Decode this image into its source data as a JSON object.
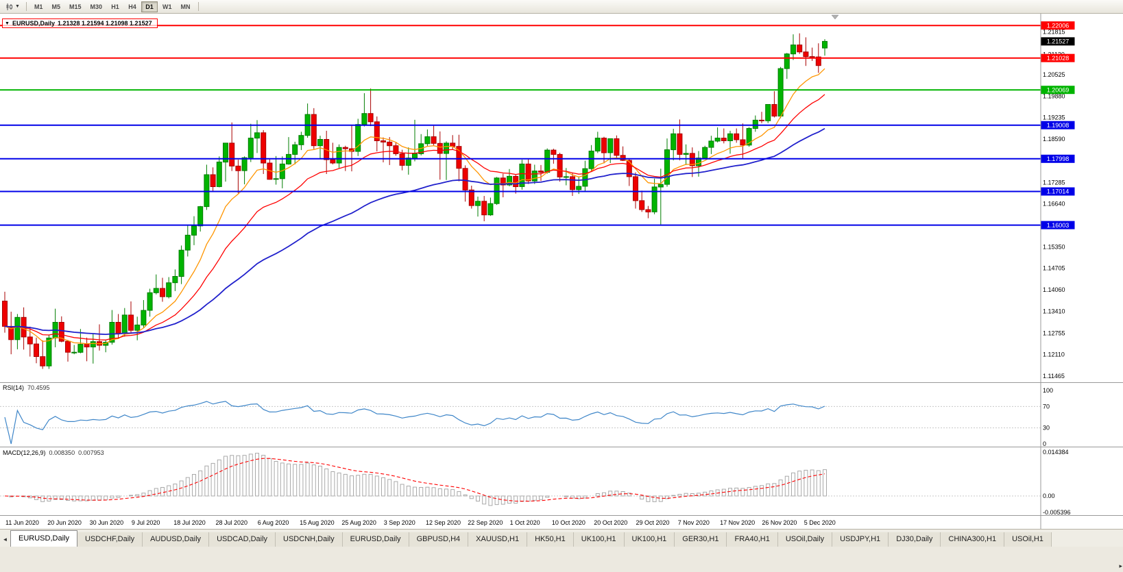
{
  "toolbar": {
    "chart_type_icon": "candlestick-chart-icon",
    "timeframes": [
      "M1",
      "M5",
      "M15",
      "M30",
      "H1",
      "H4",
      "D1",
      "W1",
      "MN"
    ],
    "active_timeframe": "D1"
  },
  "chart": {
    "symbol_title": "EURUSD,Daily",
    "ohlc": "1.21328 1.21594 1.21098 1.21527",
    "hlines": [
      {
        "price": 1.22006,
        "label": "1.22006",
        "color": "#ff0000"
      },
      {
        "price": 1.21028,
        "label": "1.21028",
        "color": "#ff0000"
      },
      {
        "price": 1.20069,
        "label": "1.20069",
        "color": "#00b400"
      },
      {
        "price": 1.19008,
        "label": "1.19008",
        "color": "#0000e8"
      },
      {
        "price": 1.17998,
        "label": "1.17998",
        "color": "#0000e8"
      },
      {
        "price": 1.17014,
        "label": "1.17014",
        "color": "#0000e8"
      },
      {
        "price": 1.16003,
        "label": "1.16003",
        "color": "#0000e8"
      }
    ],
    "current_price": {
      "price": 1.21527,
      "label": "1.21527",
      "bg": "#000000"
    },
    "price_axis_labels": [
      "1.21815",
      "1.21130",
      "1.20525",
      "1.19880",
      "1.19235",
      "1.18590",
      "1.17285",
      "1.16640",
      "1.15350",
      "1.14705",
      "1.14060",
      "1.13410",
      "1.12755",
      "1.12110",
      "1.11465"
    ]
  },
  "chart_data": {
    "type": "candlestick",
    "symbol": "EURUSD",
    "timeframe": "Daily",
    "price_range": [
      1.1128,
      1.2236
    ],
    "x_labels": [
      "11 Jun 2020",
      "20 Jun 2020",
      "30 Jun 2020",
      "9 Jul 2020",
      "18 Jul 2020",
      "28 Jul 2020",
      "6 Aug 2020",
      "15 Aug 2020",
      "25 Aug 2020",
      "3 Sep 2020",
      "12 Sep 2020",
      "22 Sep 2020",
      "1 Oct 2020",
      "10 Oct 2020",
      "20 Oct 2020",
      "29 Oct 2020",
      "7 Nov 2020",
      "17 Nov 2020",
      "26 Nov 2020",
      "5 Dec 2020"
    ],
    "moving_averages": [
      {
        "name": "ma-fast",
        "period": 10,
        "color": "#ff9500",
        "width": 1.3
      },
      {
        "name": "ma-medium",
        "period": 21,
        "color": "#ff0000",
        "width": 1.3
      },
      {
        "name": "ma-slow",
        "period": 50,
        "color": "#2020cc",
        "width": 1.8
      }
    ],
    "candles_ohlc": [
      [
        1.1372,
        1.14,
        1.1277,
        1.1296
      ],
      [
        1.1296,
        1.134,
        1.1212,
        1.1256
      ],
      [
        1.1256,
        1.1333,
        1.1227,
        1.1323
      ],
      [
        1.1323,
        1.1353,
        1.1226,
        1.1264
      ],
      [
        1.1264,
        1.1295,
        1.1205,
        1.1243
      ],
      [
        1.1243,
        1.1262,
        1.1185,
        1.1205
      ],
      [
        1.1205,
        1.1254,
        1.1168,
        1.1177
      ],
      [
        1.1177,
        1.1271,
        1.1168,
        1.1261
      ],
      [
        1.1261,
        1.1349,
        1.1233,
        1.1308
      ],
      [
        1.1308,
        1.1326,
        1.1248,
        1.1251
      ],
      [
        1.1251,
        1.1255,
        1.119,
        1.1218
      ],
      [
        1.1218,
        1.124,
        1.1212,
        1.1218
      ],
      [
        1.1218,
        1.1288,
        1.1215,
        1.1242
      ],
      [
        1.1242,
        1.1262,
        1.1191,
        1.1234
      ],
      [
        1.1234,
        1.1275,
        1.1184,
        1.125
      ],
      [
        1.125,
        1.1302,
        1.1223,
        1.1239
      ],
      [
        1.1239,
        1.1254,
        1.1218,
        1.1248
      ],
      [
        1.1248,
        1.1345,
        1.1241,
        1.1308
      ],
      [
        1.1308,
        1.1333,
        1.1259,
        1.1274
      ],
      [
        1.1274,
        1.1351,
        1.1265,
        1.133
      ],
      [
        1.133,
        1.1371,
        1.1277,
        1.1284
      ],
      [
        1.1284,
        1.1325,
        1.1254,
        1.13
      ],
      [
        1.13,
        1.1375,
        1.1292,
        1.1344
      ],
      [
        1.1344,
        1.1409,
        1.1325,
        1.1397
      ],
      [
        1.1397,
        1.1452,
        1.1392,
        1.141
      ],
      [
        1.141,
        1.1442,
        1.137,
        1.1385
      ],
      [
        1.1385,
        1.1444,
        1.138,
        1.1427
      ],
      [
        1.1427,
        1.1467,
        1.1402,
        1.1446
      ],
      [
        1.1446,
        1.1539,
        1.1423,
        1.1525
      ],
      [
        1.1525,
        1.1601,
        1.1506,
        1.157
      ],
      [
        1.157,
        1.1627,
        1.154,
        1.1598
      ],
      [
        1.1598,
        1.1658,
        1.1581,
        1.1656
      ],
      [
        1.1656,
        1.1782,
        1.1646,
        1.1752
      ],
      [
        1.1752,
        1.1774,
        1.17,
        1.1716
      ],
      [
        1.1716,
        1.1807,
        1.1714,
        1.179
      ],
      [
        1.179,
        1.1847,
        1.1731,
        1.1847
      ],
      [
        1.1847,
        1.1909,
        1.1763,
        1.1778
      ],
      [
        1.1778,
        1.1797,
        1.1696,
        1.1764
      ],
      [
        1.1764,
        1.1807,
        1.1723,
        1.1803
      ],
      [
        1.1803,
        1.1905,
        1.179,
        1.1862
      ],
      [
        1.1862,
        1.1916,
        1.1817,
        1.1878
      ],
      [
        1.1878,
        1.1886,
        1.1754,
        1.1787
      ],
      [
        1.1787,
        1.1798,
        1.1737,
        1.1738
      ],
      [
        1.1738,
        1.1808,
        1.1722,
        1.174
      ],
      [
        1.174,
        1.1807,
        1.1711,
        1.1784
      ],
      [
        1.1784,
        1.1865,
        1.1782,
        1.1813
      ],
      [
        1.1813,
        1.1851,
        1.1783,
        1.1842
      ],
      [
        1.1842,
        1.1881,
        1.1826,
        1.187
      ],
      [
        1.187,
        1.1966,
        1.1863,
        1.1933
      ],
      [
        1.1933,
        1.1952,
        1.1829,
        1.1839
      ],
      [
        1.1839,
        1.1869,
        1.1801,
        1.1858
      ],
      [
        1.1858,
        1.1884,
        1.1754,
        1.1797
      ],
      [
        1.1797,
        1.1848,
        1.1783,
        1.1787
      ],
      [
        1.1787,
        1.1843,
        1.1772,
        1.1834
      ],
      [
        1.1834,
        1.1839,
        1.1763,
        1.183
      ],
      [
        1.183,
        1.1901,
        1.1762,
        1.1822
      ],
      [
        1.1822,
        1.192,
        1.1808,
        1.1903
      ],
      [
        1.1903,
        1.1997,
        1.1897,
        1.1936
      ],
      [
        1.1936,
        1.2011,
        1.1898,
        1.1911
      ],
      [
        1.1911,
        1.1927,
        1.1822,
        1.1854
      ],
      [
        1.1854,
        1.1864,
        1.1789,
        1.185
      ],
      [
        1.185,
        1.1865,
        1.1781,
        1.1839
      ],
      [
        1.1839,
        1.1849,
        1.1809,
        1.1815
      ],
      [
        1.1815,
        1.1827,
        1.1765,
        1.178
      ],
      [
        1.178,
        1.1834,
        1.1752,
        1.1802
      ],
      [
        1.1802,
        1.1917,
        1.1792,
        1.1815
      ],
      [
        1.1815,
        1.1874,
        1.181,
        1.1845
      ],
      [
        1.1845,
        1.1888,
        1.1838,
        1.1866
      ],
      [
        1.1866,
        1.1899,
        1.184,
        1.1846
      ],
      [
        1.1846,
        1.1882,
        1.1737,
        1.1816
      ],
      [
        1.1816,
        1.1852,
        1.1736,
        1.1847
      ],
      [
        1.1847,
        1.1871,
        1.1827,
        1.1837
      ],
      [
        1.1837,
        1.1872,
        1.1732,
        1.1771
      ],
      [
        1.1771,
        1.178,
        1.1671,
        1.1706
      ],
      [
        1.1706,
        1.1719,
        1.165,
        1.1659
      ],
      [
        1.1659,
        1.1686,
        1.1626,
        1.1672
      ],
      [
        1.1672,
        1.1688,
        1.1612,
        1.1631
      ],
      [
        1.1631,
        1.1683,
        1.1628,
        1.1665
      ],
      [
        1.1665,
        1.1745,
        1.1661,
        1.1742
      ],
      [
        1.1742,
        1.1755,
        1.1684,
        1.1721
      ],
      [
        1.1721,
        1.1769,
        1.1717,
        1.1747
      ],
      [
        1.1747,
        1.1751,
        1.1695,
        1.1716
      ],
      [
        1.1716,
        1.1797,
        1.1707,
        1.1784
      ],
      [
        1.1784,
        1.1798,
        1.1724,
        1.1733
      ],
      [
        1.1733,
        1.1782,
        1.1724,
        1.1763
      ],
      [
        1.1763,
        1.1781,
        1.1733,
        1.1759
      ],
      [
        1.1759,
        1.1831,
        1.1755,
        1.1826
      ],
      [
        1.1826,
        1.183,
        1.1785,
        1.1813
      ],
      [
        1.1813,
        1.1818,
        1.1731,
        1.1745
      ],
      [
        1.1745,
        1.1772,
        1.172,
        1.1746
      ],
      [
        1.1746,
        1.1758,
        1.1688,
        1.1707
      ],
      [
        1.1707,
        1.1747,
        1.1694,
        1.1717
      ],
      [
        1.1717,
        1.1794,
        1.1703,
        1.177
      ],
      [
        1.177,
        1.1841,
        1.176,
        1.1823
      ],
      [
        1.1823,
        1.1881,
        1.1817,
        1.1862
      ],
      [
        1.1862,
        1.1866,
        1.1786,
        1.1818
      ],
      [
        1.1818,
        1.186,
        1.1787,
        1.186
      ],
      [
        1.186,
        1.187,
        1.1803,
        1.181
      ],
      [
        1.181,
        1.1837,
        1.1793,
        1.1795
      ],
      [
        1.1795,
        1.18,
        1.1718,
        1.1746
      ],
      [
        1.1746,
        1.1759,
        1.165,
        1.1674
      ],
      [
        1.1674,
        1.1704,
        1.164,
        1.1647
      ],
      [
        1.1647,
        1.1658,
        1.1621,
        1.164
      ],
      [
        1.164,
        1.174,
        1.1633,
        1.1715
      ],
      [
        1.1715,
        1.177,
        1.1602,
        1.1723
      ],
      [
        1.1723,
        1.1861,
        1.1716,
        1.1827
      ],
      [
        1.1827,
        1.189,
        1.1795,
        1.1875
      ],
      [
        1.1875,
        1.1918,
        1.1795,
        1.1813
      ],
      [
        1.1813,
        1.1843,
        1.1781,
        1.1816
      ],
      [
        1.1816,
        1.1834,
        1.1745,
        1.1779
      ],
      [
        1.1779,
        1.1823,
        1.1746,
        1.1802
      ],
      [
        1.1802,
        1.1839,
        1.1799,
        1.1834
      ],
      [
        1.1834,
        1.1869,
        1.1814,
        1.1853
      ],
      [
        1.1853,
        1.1894,
        1.1849,
        1.1862
      ],
      [
        1.1862,
        1.1891,
        1.1846,
        1.1854
      ],
      [
        1.1854,
        1.1884,
        1.1815,
        1.1875
      ],
      [
        1.1875,
        1.1891,
        1.1848,
        1.1857
      ],
      [
        1.1857,
        1.1906,
        1.18,
        1.1841
      ],
      [
        1.1841,
        1.1895,
        1.1836,
        1.1891
      ],
      [
        1.1891,
        1.193,
        1.1881,
        1.1916
      ],
      [
        1.1916,
        1.1941,
        1.1907,
        1.1914
      ],
      [
        1.1914,
        1.1963,
        1.1907,
        1.1963
      ],
      [
        1.1963,
        1.2003,
        1.1924,
        1.1928
      ],
      [
        1.1928,
        1.2076,
        1.1922,
        1.2071
      ],
      [
        1.2071,
        1.2118,
        1.204,
        1.2115
      ],
      [
        1.2115,
        1.2174,
        1.2097,
        1.2142
      ],
      [
        1.2142,
        1.2177,
        1.2115,
        1.2121
      ],
      [
        1.2121,
        1.2165,
        1.2079,
        1.2107
      ],
      [
        1.2107,
        1.2134,
        1.2094,
        1.2106
      ],
      [
        1.2106,
        1.2147,
        1.2058,
        1.208
      ],
      [
        1.21328,
        1.21594,
        1.21098,
        1.21527
      ]
    ]
  },
  "rsi_panel": {
    "name": "RSI(14)",
    "value": "70.4595",
    "period": 14,
    "axis_labels": [
      "100",
      "70",
      "30",
      "0"
    ],
    "level_lines": [
      70,
      30
    ],
    "range": [
      0,
      100
    ],
    "line_color": "#3d85c8"
  },
  "macd_panel": {
    "name": "MACD(12,26,9)",
    "value": "0.008350",
    "signal_value": "0.007953",
    "fast_period": 12,
    "slow_period": 26,
    "signal_period": 9,
    "axis_labels": [
      "0.014384",
      "0.00",
      "-0.005396"
    ],
    "range": [
      -0.005396,
      0.014384
    ],
    "histogram_color": "#a8a8a8",
    "signal_color": "#ff0000"
  },
  "tabs": {
    "items": [
      "EURUSD,Daily",
      "USDCHF,Daily",
      "AUDUSD,Daily",
      "USDCAD,Daily",
      "USDCNH,Daily",
      "EURUSD,Daily",
      "GBPUSD,H4",
      "XAUUSD,H1",
      "HK50,H1",
      "UK100,H1",
      "UK100,H1",
      "GER30,H1",
      "FRA40,H1",
      "USOil,Daily",
      "USDJPY,H1",
      "DJ30,Daily",
      "CHINA300,H1",
      "USOil,H1"
    ],
    "active_index": 0,
    "scroll_left_icon": "left-arrow",
    "scroll_right_icon": "right-arrow"
  },
  "colors": {
    "candle_up": "#00b400",
    "candle_up_border": "#007d00",
    "candle_down": "#ee0000",
    "candle_down_border": "#a80000",
    "background": "#ffffff",
    "panel_border": "#999999",
    "grid_dash": "#c8c8c8",
    "axis_text": "#000000"
  }
}
